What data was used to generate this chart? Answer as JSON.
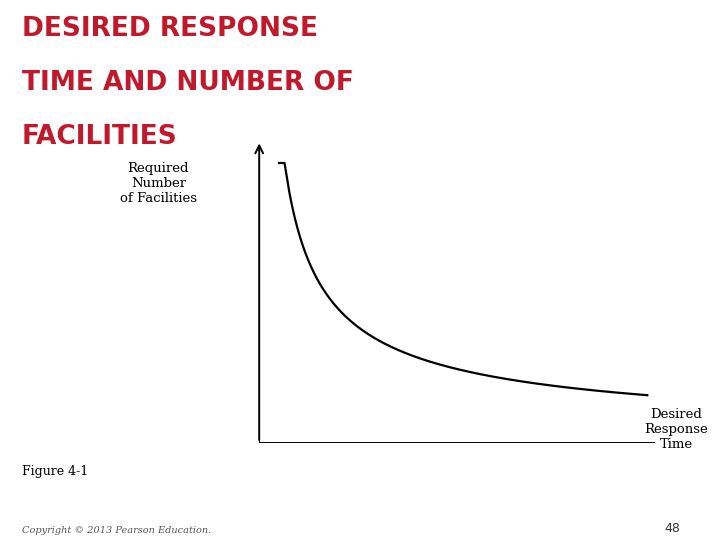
{
  "title_line1": "DESIRED RESPONSE",
  "title_line2": "TIME AND NUMBER OF",
  "title_line3": "FACILITIES",
  "title_color": "#c0192c",
  "title_fontsize": 19,
  "title_fontweight": "bold",
  "ylabel_text": "Required\nNumber\nof Facilities",
  "xlabel_text": "Desired\nResponse\nTime",
  "figure_caption": "Figure 4-1",
  "copyright_text": "Copyright © 2013 Pearson Education.",
  "page_number": "48",
  "background_color": "#ffffff",
  "curve_color": "#000000",
  "curve_linewidth": 1.6,
  "axes_color": "#000000",
  "right_bar_color": "#8b1a1a"
}
